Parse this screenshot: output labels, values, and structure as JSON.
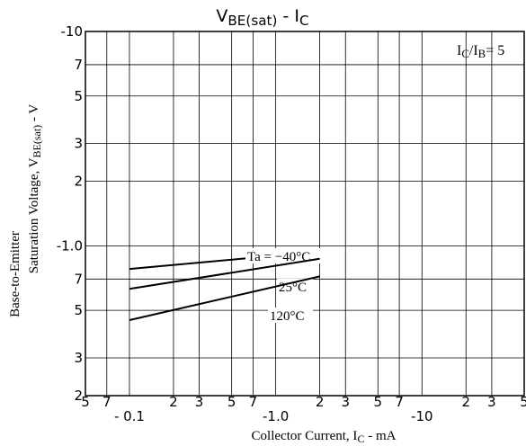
{
  "chart_data": {
    "type": "line",
    "title": [
      "V",
      "BE(sat)",
      "  -  I",
      "C"
    ],
    "annotation": [
      "I",
      "C",
      "/I",
      "B",
      "= 5"
    ],
    "x_label": [
      "Collector  Current, I",
      "C",
      "  -  mA"
    ],
    "y_label": [
      "Base-to-Emitter",
      [
        "Saturation Voltage, V",
        "BE(sat)",
        "  -  V"
      ]
    ],
    "x_scale": "log",
    "y_scale": "log",
    "grid": true,
    "color": "#000000",
    "xlim": [
      -0.05,
      -50
    ],
    "ylim": [
      -10,
      -0.2
    ],
    "xticks": [
      {
        "value": -0.05,
        "label": "5"
      },
      {
        "value": -0.07,
        "label": "7"
      },
      {
        "value": -0.1,
        "label": "- 0.1"
      },
      {
        "value": -0.2,
        "label": "2"
      },
      {
        "value": -0.3,
        "label": "3"
      },
      {
        "value": -0.5,
        "label": "5"
      },
      {
        "value": -0.7,
        "label": "7"
      },
      {
        "value": -1,
        "label": "-1.0"
      },
      {
        "value": -2,
        "label": "2"
      },
      {
        "value": -3,
        "label": "3"
      },
      {
        "value": -5,
        "label": "5"
      },
      {
        "value": -7,
        "label": "7"
      },
      -10,
      {
        "value": -20,
        "label": "2"
      },
      {
        "value": -30,
        "label": "3"
      },
      {
        "value": -50,
        "label": "5"
      }
    ],
    "yticks": [
      -10,
      {
        "value": -7,
        "label": "7"
      },
      {
        "value": -5,
        "label": "5"
      },
      {
        "value": -3,
        "label": "3"
      },
      {
        "value": -2,
        "label": "2"
      },
      {
        "value": -1,
        "label": "-1.0"
      },
      {
        "value": -0.7,
        "label": "7"
      },
      {
        "value": -0.5,
        "label": "5"
      },
      {
        "value": -0.3,
        "label": "3"
      },
      {
        "value": -0.2,
        "label": "2"
      }
    ],
    "x": [
      -0.1,
      -2
    ],
    "series": [
      {
        "name": "Ta = −40°C",
        "values": [
          -0.78,
          -0.94
        ]
      },
      {
        "name": "25°C",
        "values": [
          -0.63,
          -0.87
        ]
      },
      {
        "name": "120°C",
        "values": [
          -0.45,
          -0.72
        ]
      }
    ]
  }
}
